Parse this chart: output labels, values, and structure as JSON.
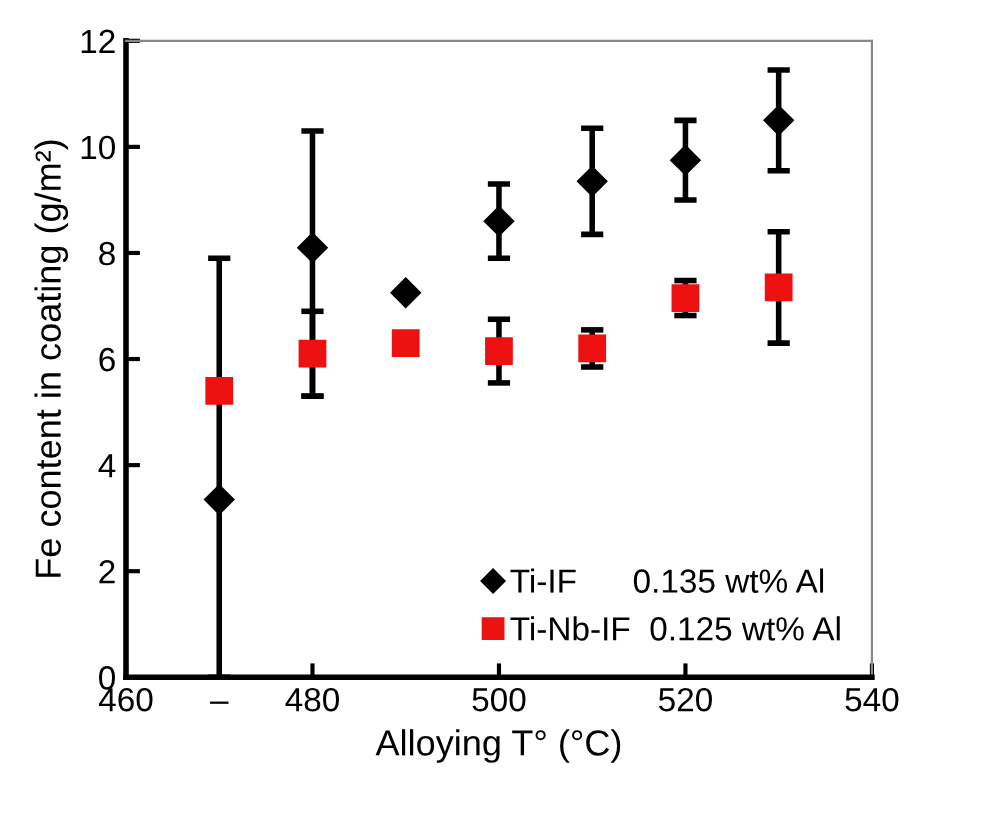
{
  "chart_data": {
    "type": "scatter",
    "xlabel": "Alloying T° (°C)",
    "ylabel": "Fe content in coating (g/m²)",
    "xlim": [
      460,
      540
    ],
    "xticks": [
      460,
      {
        "value": 470,
        "label": "–"
      },
      480,
      500,
      520,
      540
    ],
    "ylim": [
      0,
      12
    ],
    "yticks": [
      0,
      2,
      4,
      6,
      8,
      10,
      12
    ],
    "grid": false,
    "legend": "bottom right",
    "series": [
      {
        "name": "Ti-IF      0.135 wt% Al",
        "color": "#000000",
        "marker": "diamond",
        "x": [
          470,
          480,
          490,
          500,
          510,
          520,
          530
        ],
        "values": [
          3.35,
          8.1,
          7.25,
          8.6,
          9.35,
          9.75,
          10.5
        ],
        "errors": [
          [
            0,
            7.9
          ],
          [
            5.3,
            10.3
          ],
          null,
          0.7,
          1.0,
          0.75,
          0.95
        ]
      },
      {
        "name": "Ti-Nb-IF  0.125 wt% Al",
        "color": "#ee1111",
        "marker": "square",
        "x": [
          470,
          480,
          490,
          500,
          510,
          520,
          530
        ],
        "values": [
          5.4,
          6.1,
          6.3,
          6.15,
          6.2,
          7.15,
          7.35
        ],
        "errors": [
          null,
          0.8,
          null,
          0.6,
          0.35,
          0.33,
          1.05
        ]
      }
    ]
  }
}
